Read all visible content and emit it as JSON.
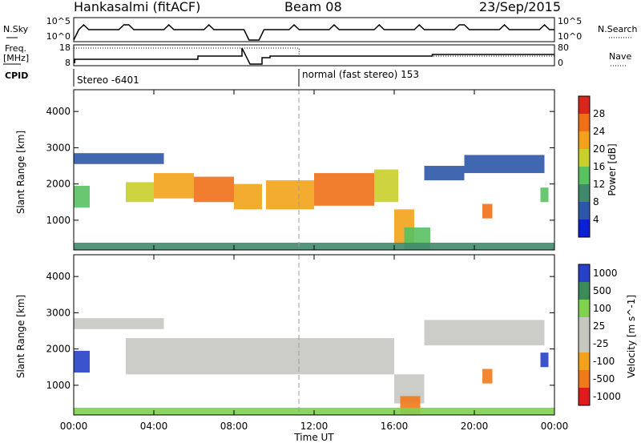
{
  "header": {
    "station": "Hankasalmi (fitACF)",
    "beam": "Beam 08",
    "date": "23/Sep/2015"
  },
  "strip_labels": {
    "nsky": "N.Sky",
    "nsearch": "N.Search",
    "freq_line1": "Freq.",
    "freq_line2": "[MHz]",
    "nave": "Nave",
    "cpid": "CPID"
  },
  "strip_ticks": {
    "nsky_top": "10^5",
    "nsky_bottom": "10^0",
    "nsearch_top": "10^5",
    "nsearch_bottom": "10^0",
    "freq_top": "18",
    "freq_bottom": "8",
    "nave_top": "80",
    "nave_bottom": "0"
  },
  "cpid_segments": [
    {
      "label": "Stereo -6401",
      "start_hour": 0
    },
    {
      "label": "normal (fast stereo) 153",
      "start_hour": 11.25
    }
  ],
  "colors": {
    "power_scale": [
      "#0a1fd6",
      "#2c57a8",
      "#3f8a6a",
      "#58c160",
      "#c9cf2b",
      "#f2a21a",
      "#ef6f17",
      "#d8261c"
    ],
    "velocity_scale": [
      "#e01b1b",
      "#f07a1a",
      "#f2a21a",
      "#c7c7c2",
      "#c7c7c2",
      "#7fd14f",
      "#3a8a5a",
      "#2640c8"
    ]
  },
  "chart_data": [
    {
      "type": "heatmap",
      "quantity": "Power",
      "xlabel": "",
      "ylabel": "Slant Range [km]",
      "xlim": [
        0,
        24
      ],
      "ylim": [
        180,
        4600
      ],
      "x_ticks": [
        "00:00",
        "04:00",
        "08:00",
        "12:00",
        "16:00",
        "20:00",
        "00:00"
      ],
      "y_ticks": [
        "1000",
        "2000",
        "3000",
        "4000"
      ],
      "colorbar_label": "Power [dB]",
      "colorbar_ticks": [
        "4",
        "8",
        "12",
        "16",
        "20",
        "24",
        "28"
      ],
      "colorbar_range": [
        0,
        32
      ],
      "bands": [
        {
          "start_hour": 0.0,
          "end_hour": 0.8,
          "range_min": 1350,
          "range_max": 1950,
          "value": 14
        },
        {
          "start_hour": 2.6,
          "end_hour": 4.0,
          "range_min": 1500,
          "range_max": 2050,
          "value": 18
        },
        {
          "start_hour": 4.0,
          "end_hour": 6.0,
          "range_min": 1600,
          "range_max": 2300,
          "value": 22
        },
        {
          "start_hour": 6.0,
          "end_hour": 8.0,
          "range_min": 1500,
          "range_max": 2200,
          "value": 24
        },
        {
          "start_hour": 8.0,
          "end_hour": 9.4,
          "range_min": 1300,
          "range_max": 2000,
          "value": 20
        },
        {
          "start_hour": 9.6,
          "end_hour": 12.0,
          "range_min": 1300,
          "range_max": 2100,
          "value": 22
        },
        {
          "start_hour": 12.0,
          "end_hour": 15.0,
          "range_min": 1400,
          "range_max": 2300,
          "value": 24
        },
        {
          "start_hour": 15.0,
          "end_hour": 16.2,
          "range_min": 1500,
          "range_max": 2400,
          "value": 18
        },
        {
          "start_hour": 16.0,
          "end_hour": 17.0,
          "range_min": 350,
          "range_max": 1300,
          "value": 20
        },
        {
          "start_hour": 16.5,
          "end_hour": 17.8,
          "range_min": 200,
          "range_max": 800,
          "value": 14
        },
        {
          "start_hour": 17.5,
          "end_hour": 19.5,
          "range_min": 2100,
          "range_max": 2500,
          "value": 6
        },
        {
          "start_hour": 19.5,
          "end_hour": 23.5,
          "range_min": 2300,
          "range_max": 2800,
          "value": 6
        },
        {
          "start_hour": 23.3,
          "end_hour": 23.7,
          "range_min": 1500,
          "range_max": 1900,
          "value": 14
        },
        {
          "start_hour": 20.4,
          "end_hour": 20.9,
          "range_min": 1050,
          "range_max": 1450,
          "value": 27
        },
        {
          "start_hour": 0.0,
          "end_hour": 4.5,
          "range_min": 2550,
          "range_max": 2850,
          "value": 6
        },
        {
          "start_hour": 0.0,
          "end_hour": 24.0,
          "range_min": 180,
          "range_max": 380,
          "value": 8
        }
      ]
    },
    {
      "type": "heatmap",
      "quantity": "Velocity",
      "xlabel": "Time UT",
      "ylabel": "Slant Range [km]",
      "xlim": [
        0,
        24
      ],
      "ylim": [
        180,
        4600
      ],
      "x_ticks": [
        "00:00",
        "04:00",
        "08:00",
        "12:00",
        "16:00",
        "20:00",
        "00:00"
      ],
      "y_ticks": [
        "1000",
        "2000",
        "3000",
        "4000"
      ],
      "colorbar_label": "Velocity [m s^-1]",
      "colorbar_ticks": [
        "1000",
        "500",
        "100",
        "25",
        "-25",
        "-100",
        "-500",
        "-1000"
      ],
      "bands": [
        {
          "start_hour": 0.0,
          "end_hour": 0.8,
          "range_min": 1350,
          "range_max": 1950,
          "value": 1000
        },
        {
          "start_hour": 2.6,
          "end_hour": 16.0,
          "range_min": 1300,
          "range_max": 2300,
          "value": 0
        },
        {
          "start_hour": 16.0,
          "end_hour": 17.5,
          "range_min": 500,
          "range_max": 1300,
          "value": 0
        },
        {
          "start_hour": 16.3,
          "end_hour": 17.3,
          "range_min": 200,
          "range_max": 700,
          "value": -500
        },
        {
          "start_hour": 17.5,
          "end_hour": 23.5,
          "range_min": 2100,
          "range_max": 2800,
          "value": 0
        },
        {
          "start_hour": 0.0,
          "end_hour": 4.5,
          "range_min": 2550,
          "range_max": 2850,
          "value": 0
        },
        {
          "start_hour": 23.3,
          "end_hour": 23.7,
          "range_min": 1500,
          "range_max": 1900,
          "value": 1000
        },
        {
          "start_hour": 20.4,
          "end_hour": 20.9,
          "range_min": 1050,
          "range_max": 1450,
          "value": -500
        },
        {
          "start_hour": 0.0,
          "end_hour": 24.0,
          "range_min": 180,
          "range_max": 380,
          "value": 100
        }
      ]
    }
  ]
}
